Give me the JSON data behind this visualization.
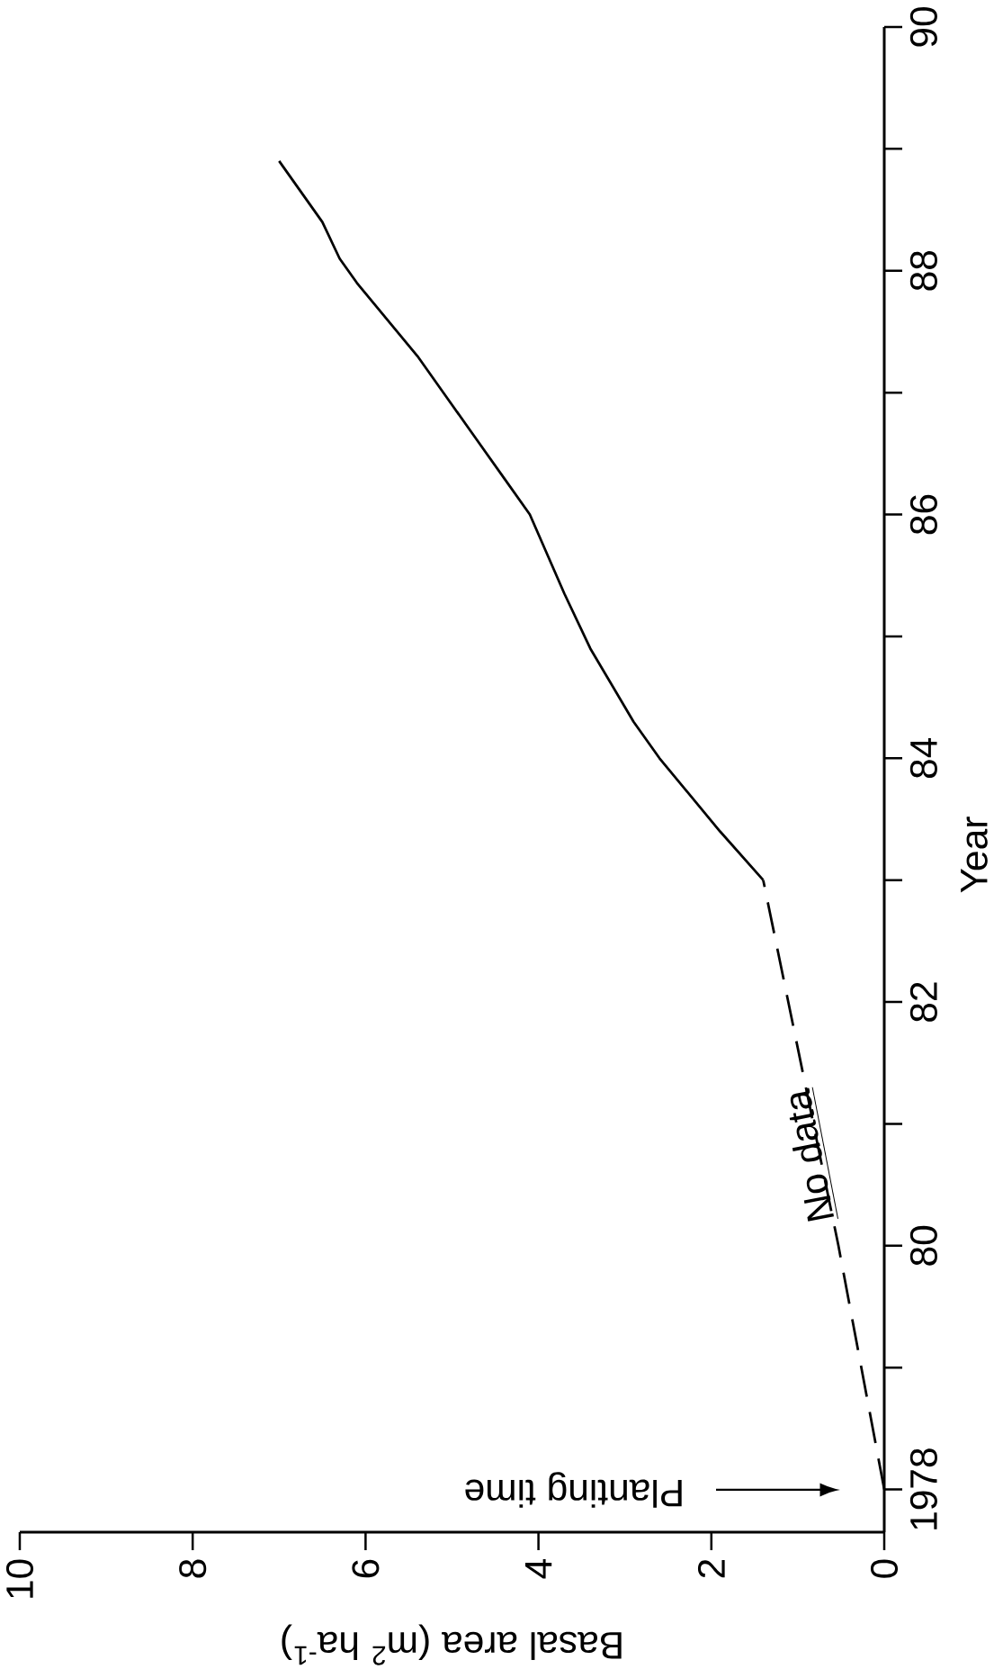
{
  "chart_data": {
    "type": "line",
    "xlabel": "Basal area (m$^{2}$ ha$^{-1}$)",
    "ylabel": "Year",
    "xlim": [
      10,
      0
    ],
    "ylim": [
      1977.65,
      1990
    ],
    "xticks": [
      10,
      8,
      6,
      4,
      2,
      0
    ],
    "yticks": [
      {
        "value": 1978,
        "label": "1978"
      },
      {
        "value": 1980,
        "label": "80"
      },
      {
        "value": 1982,
        "label": "82"
      },
      {
        "value": 1984,
        "label": "84"
      },
      {
        "value": 1986,
        "label": "86"
      },
      {
        "value": 1988,
        "label": "88"
      },
      {
        "value": 1990,
        "label": "90"
      }
    ],
    "series": [
      {
        "color": "#000000",
        "line_style": "dashed",
        "x": [
          0,
          0.53,
          1.4
        ],
        "values": [
          1978,
          1980,
          1983
        ]
      },
      {
        "color": "#000000",
        "line_style": "solid",
        "x": [
          1.4,
          1.9,
          2.6,
          2.9,
          3.4,
          3.7,
          4.1,
          4.4,
          4.8,
          5.0,
          5.4,
          6.1,
          6.3,
          6.5,
          7.0
        ],
        "values": [
          1983,
          1983.4,
          1984.0,
          1984.3,
          1984.9,
          1985.35,
          1986.0,
          1986.3,
          1986.7,
          1986.9,
          1987.3,
          1987.9,
          1988.1,
          1988.4,
          1988.9
        ]
      }
    ],
    "annotations": [
      "Planting time",
      "No data"
    ]
  }
}
